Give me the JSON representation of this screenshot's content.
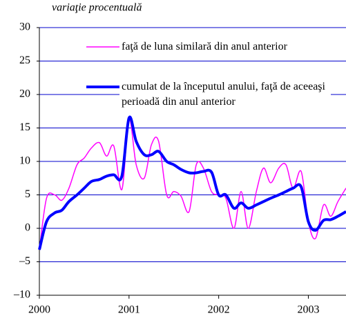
{
  "chart_data": {
    "type": "line",
    "subtitle": "variaţie procentuală",
    "x": [
      2000,
      2000.08,
      2000.17,
      2000.25,
      2000.33,
      2000.42,
      2000.5,
      2000.58,
      2000.67,
      2000.75,
      2000.83,
      2000.92,
      2001,
      2001.08,
      2001.17,
      2001.25,
      2001.33,
      2001.42,
      2001.5,
      2001.58,
      2001.67,
      2001.75,
      2001.83,
      2001.92,
      2002,
      2002.08,
      2002.17,
      2002.25,
      2002.33,
      2002.42,
      2002.5,
      2002.58,
      2002.67,
      2002.75,
      2002.83,
      2002.92,
      2003,
      2003.08,
      2003.17,
      2003.25,
      2003.33,
      2003.42
    ],
    "series": [
      {
        "name": "faţă de luna similară din anul anterior",
        "color": "#ff00ff",
        "width": 1.5,
        "values": [
          -3.2,
          4.5,
          5,
          4.2,
          6,
          9.5,
          10.5,
          12,
          12.8,
          10.8,
          12.3,
          5.8,
          16.3,
          9.5,
          7.5,
          12.5,
          13,
          5,
          5.5,
          4.8,
          2.5,
          9.5,
          9,
          5.5,
          5,
          4.5,
          0,
          5.5,
          0,
          5.5,
          9,
          6.8,
          9,
          9.5,
          6,
          8.5,
          1,
          -1.5,
          3.5,
          1.8,
          4,
          6
        ]
      },
      {
        "name": "cumulat de la începutul anului, faţă de aceeaşi perioadă din anul anterior",
        "color": "#0000ff",
        "width": 4,
        "values": [
          -3.2,
          1,
          2.3,
          2.7,
          4,
          5,
          6,
          7,
          7.3,
          7.8,
          8,
          7.8,
          16.5,
          13,
          11,
          11,
          11.5,
          10,
          9.5,
          8.8,
          8.3,
          8.3,
          8.5,
          8.4,
          5,
          5,
          3,
          3.8,
          3,
          3.5,
          4,
          4.5,
          5,
          5.5,
          6,
          6.2,
          1,
          -0.3,
          1.2,
          1.3,
          1.8,
          2.5
        ]
      }
    ],
    "xlim": [
      2000,
      2003.42
    ],
    "xticks": [
      2000,
      2001,
      2002,
      2003
    ],
    "ylim": [
      -10,
      30
    ],
    "yticks": [
      {
        "value": -10,
        "label": "–10"
      },
      {
        "value": -5,
        "label": "–5"
      },
      0,
      5,
      10,
      15,
      20,
      25,
      30
    ],
    "grid": true,
    "grid_color": "#0000cc"
  }
}
